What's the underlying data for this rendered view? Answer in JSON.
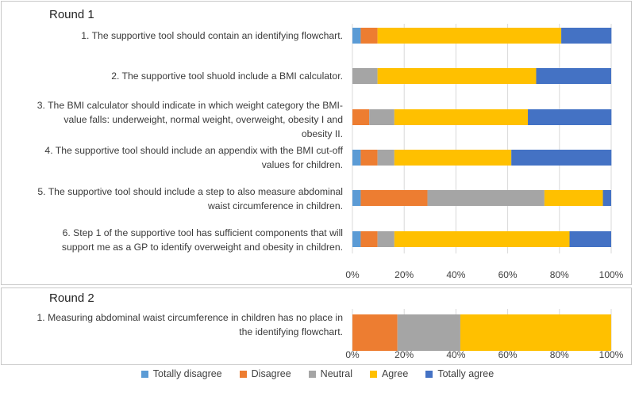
{
  "chart_data": [
    {
      "type": "bar",
      "orientation": "horizontal",
      "stacked": true,
      "percent": true,
      "title": "Round 1",
      "categories": [
        "1. The supportive tool should contain an identifying flowchart.",
        "2. The supportive tool shuold include a BMI calculator.",
        "3. The BMI calculator should indicate in which weight category the BMI-value falls: underweight, normal weight, overweight, obesity I and obesity II.",
        "4. The supportive tool should include an appendix with the BMI cut-off values for children.",
        "5. The supportive tool should include a step to also measure abdominal waist circumference in children.",
        "6. Step 1 of the supportive tool has sufficient components that will support me as a GP to identify overweight and obesity in children."
      ],
      "series": [
        {
          "name": "Totally disagree",
          "values": [
            3.2,
            0,
            0,
            3.2,
            3.2,
            3.2
          ]
        },
        {
          "name": "Disagree",
          "values": [
            6.5,
            0,
            6.5,
            6.5,
            25.8,
            6.5
          ]
        },
        {
          "name": "Neutral",
          "values": [
            0,
            9.7,
            9.7,
            6.5,
            45.2,
            6.5
          ]
        },
        {
          "name": "Agree",
          "values": [
            71.0,
            61.3,
            51.6,
            45.2,
            22.6,
            67.7
          ]
        },
        {
          "name": "Totally agree",
          "values": [
            19.4,
            29.0,
            32.3,
            38.7,
            3.2,
            16.1
          ]
        }
      ],
      "xlim": [
        0,
        100
      ],
      "ticks": [
        "0%",
        "20%",
        "40%",
        "60%",
        "80%",
        "100%"
      ]
    },
    {
      "type": "bar",
      "orientation": "horizontal",
      "stacked": true,
      "percent": true,
      "title": "Round 2",
      "categories": [
        "1. Measuring abdominal waist circumference in children has no place in the identifying flowchart."
      ],
      "series": [
        {
          "name": "Totally disagree",
          "values": [
            0
          ]
        },
        {
          "name": "Disagree",
          "values": [
            17.4
          ]
        },
        {
          "name": "Neutral",
          "values": [
            24.3
          ]
        },
        {
          "name": "Agree",
          "values": [
            58.3
          ]
        },
        {
          "name": "Totally agree",
          "values": [
            0
          ]
        }
      ],
      "xlim": [
        0,
        100
      ],
      "ticks": [
        "0%",
        "20%",
        "40%",
        "60%",
        "80%",
        "100%"
      ]
    }
  ],
  "legend": [
    {
      "name": "Totally disagree",
      "color": "#5b9bd5"
    },
    {
      "name": "Disagree",
      "color": "#ed7d31"
    },
    {
      "name": "Neutral",
      "color": "#a5a5a5"
    },
    {
      "name": "Agree",
      "color": "#ffc000"
    },
    {
      "name": "Totally agree",
      "color": "#4472c4"
    }
  ]
}
